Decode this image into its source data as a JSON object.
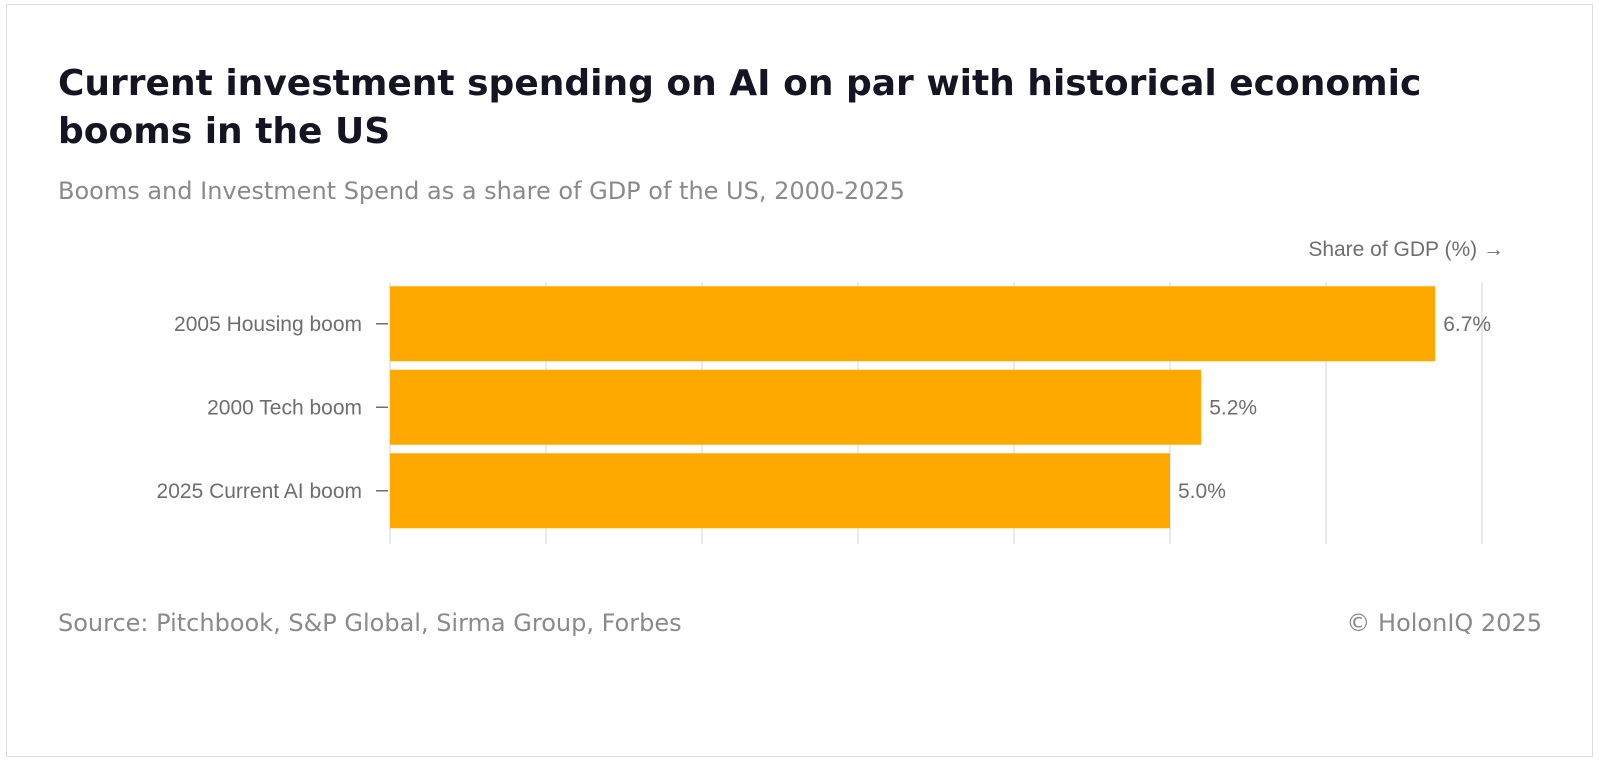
{
  "header": {
    "title": "Current investment spending on AI on par with historical economic booms in the US",
    "subtitle": "Booms and Investment Spend as a share of GDP of the US, 2000-2025"
  },
  "footer": {
    "source": "Source: Pitchbook, S&P Global, Sirma Group, Forbes",
    "copyright": "© HolonIQ 2025"
  },
  "colors": {
    "bar": "#FFA800",
    "grid": "#e2e2e2",
    "axis": "#6e6e6e"
  },
  "chart_data": {
    "type": "bar",
    "orientation": "horizontal",
    "title": "Current investment spending on AI on par with historical economic booms in the US",
    "subtitle": "Booms and Investment Spend as a share of GDP of the US, 2000-2025",
    "xlabel": "Share of GDP (%) →",
    "ylabel": "",
    "categories": [
      "2005 Housing boom",
      "2000 Tech boom",
      "2025 Current AI boom"
    ],
    "values": [
      6.7,
      5.2,
      5.0
    ],
    "data_labels": [
      "6.7%",
      "5.2%",
      "5.0%"
    ],
    "xlim": [
      0,
      7
    ],
    "grid": true,
    "legend": "none"
  }
}
